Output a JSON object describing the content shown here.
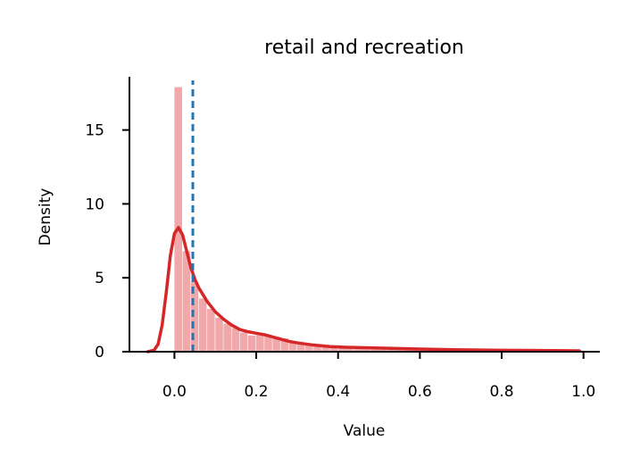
{
  "chart_data": {
    "type": "histogram+kde",
    "title": "retail and recreation",
    "xlabel": "Value",
    "ylabel": "Density",
    "xlim": [
      -0.11,
      1.04
    ],
    "ylim": [
      0,
      18.6
    ],
    "x_ticks": [
      0.0,
      0.2,
      0.4,
      0.6,
      0.8,
      1.0
    ],
    "x_tick_labels": [
      "0.0",
      "0.2",
      "0.4",
      "0.6",
      "0.8",
      "1.0"
    ],
    "y_ticks": [
      0,
      5,
      10,
      15
    ],
    "y_tick_labels": [
      "0",
      "5",
      "10",
      "15"
    ],
    "grid": false,
    "colors": {
      "histogram": "#f0a8aa",
      "kde": "#d62728",
      "reference_line": "#1f77b4"
    },
    "reference_line": {
      "x": 0.045,
      "style": "dashed"
    },
    "histogram": {
      "bin_edges": [
        0.0,
        0.02,
        0.04,
        0.06,
        0.08,
        0.1,
        0.12,
        0.14,
        0.16,
        0.18,
        0.2,
        0.22,
        0.24,
        0.26,
        0.28,
        0.3,
        0.32,
        0.34,
        0.36,
        0.38,
        0.4,
        0.44,
        0.48,
        0.52,
        0.56,
        0.6,
        0.64,
        0.68,
        0.72,
        0.76,
        0.8,
        0.84,
        0.88,
        0.92,
        0.96,
        1.0
      ],
      "densities": [
        17.9,
        6.8,
        4.7,
        3.6,
        2.9,
        2.3,
        1.9,
        1.6,
        1.3,
        1.1,
        1.2,
        1.1,
        1.0,
        0.9,
        0.7,
        0.6,
        0.5,
        0.45,
        0.4,
        0.35,
        0.3,
        0.28,
        0.25,
        0.22,
        0.2,
        0.17,
        0.15,
        0.13,
        0.12,
        0.1,
        0.1,
        0.09,
        0.08,
        0.08,
        0.07
      ]
    },
    "kde": {
      "x": [
        -0.065,
        -0.05,
        -0.04,
        -0.03,
        -0.02,
        -0.01,
        0.0,
        0.01,
        0.02,
        0.03,
        0.04,
        0.05,
        0.06,
        0.08,
        0.1,
        0.12,
        0.14,
        0.16,
        0.18,
        0.2,
        0.22,
        0.24,
        0.26,
        0.28,
        0.3,
        0.34,
        0.38,
        0.42,
        0.5,
        0.6,
        0.7,
        0.8,
        0.9,
        0.99
      ],
      "y": [
        0.0,
        0.1,
        0.5,
        1.8,
        4.0,
        6.5,
        8.0,
        8.4,
        7.9,
        6.8,
        5.7,
        4.9,
        4.3,
        3.4,
        2.7,
        2.2,
        1.8,
        1.5,
        1.35,
        1.25,
        1.15,
        1.0,
        0.85,
        0.7,
        0.6,
        0.45,
        0.35,
        0.3,
        0.25,
        0.18,
        0.13,
        0.1,
        0.08,
        0.06
      ]
    }
  }
}
